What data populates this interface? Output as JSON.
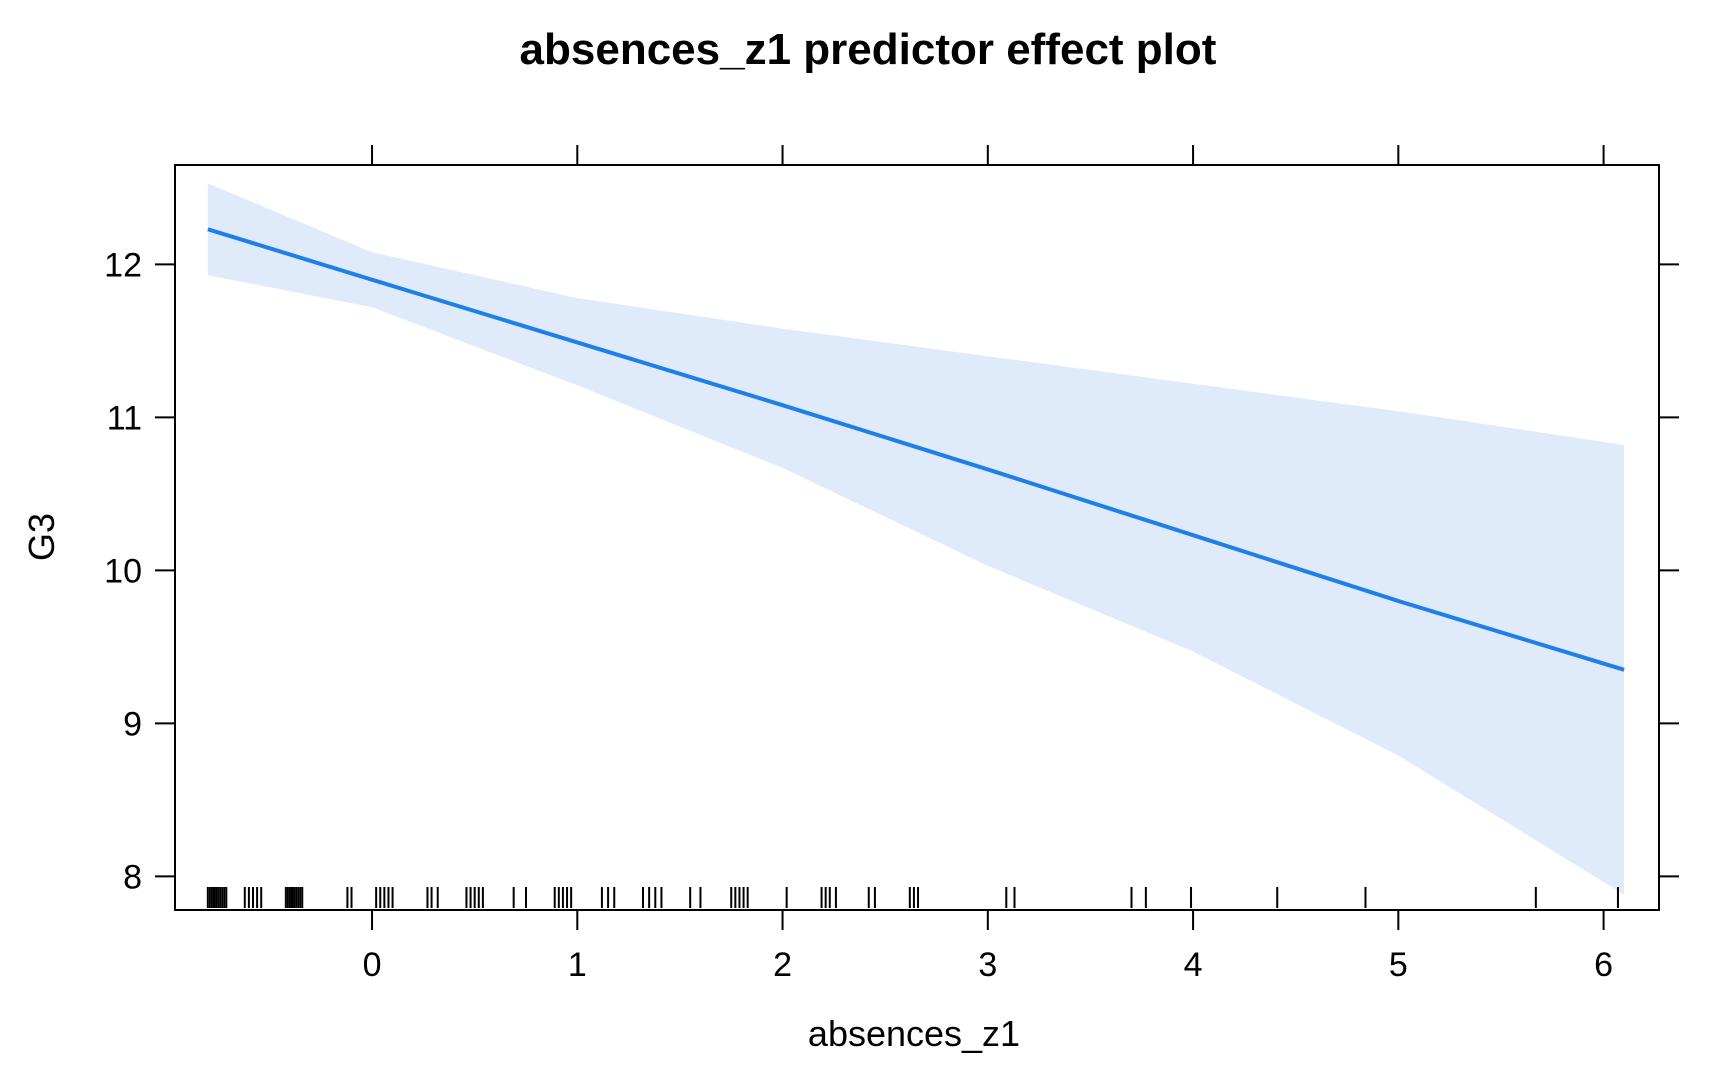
{
  "chart_data": {
    "type": "line",
    "title": "absences_z1 predictor effect plot",
    "xlabel": "absences_z1",
    "ylabel": "G3",
    "xlim": [
      -0.96,
      6.27
    ],
    "ylim": [
      7.78,
      12.65
    ],
    "x_ticks": [
      0,
      1,
      2,
      3,
      4,
      5,
      6
    ],
    "y_ticks": [
      8,
      9,
      10,
      11,
      12
    ],
    "grid": false,
    "colors": {
      "line": "#1f7fe8",
      "band": "#dfeafb",
      "axis": "#000000"
    },
    "series": [
      {
        "x": [
          -0.8,
          0.0,
          1.0,
          2.0,
          3.0,
          4.0,
          5.0,
          6.1
        ],
        "fit": [
          12.23,
          11.9,
          11.49,
          11.08,
          10.66,
          10.23,
          9.8,
          9.35
        ],
        "lower": [
          11.93,
          11.72,
          11.21,
          10.67,
          10.03,
          9.47,
          8.79,
          7.88
        ],
        "upper": [
          12.53,
          12.08,
          11.78,
          11.58,
          11.4,
          11.22,
          11.04,
          10.82
        ]
      }
    ],
    "rug": [
      -0.8,
      -0.79,
      -0.78,
      -0.77,
      -0.76,
      -0.75,
      -0.74,
      -0.73,
      -0.72,
      -0.71,
      -0.62,
      -0.6,
      -0.58,
      -0.56,
      -0.54,
      -0.42,
      -0.41,
      -0.4,
      -0.39,
      -0.38,
      -0.37,
      -0.36,
      -0.35,
      -0.34,
      -0.12,
      -0.1,
      0.02,
      0.04,
      0.06,
      0.08,
      0.1,
      0.27,
      0.29,
      0.32,
      0.46,
      0.48,
      0.5,
      0.52,
      0.54,
      0.69,
      0.75,
      0.89,
      0.91,
      0.93,
      0.95,
      0.97,
      1.12,
      1.15,
      1.18,
      1.32,
      1.35,
      1.38,
      1.41,
      1.55,
      1.6,
      1.75,
      1.77,
      1.79,
      1.81,
      1.83,
      2.02,
      2.19,
      2.21,
      2.23,
      2.26,
      2.42,
      2.45,
      2.62,
      2.64,
      2.66,
      3.09,
      3.13,
      3.7,
      3.77,
      3.99,
      4.41,
      4.84,
      5.67,
      6.07
    ]
  }
}
